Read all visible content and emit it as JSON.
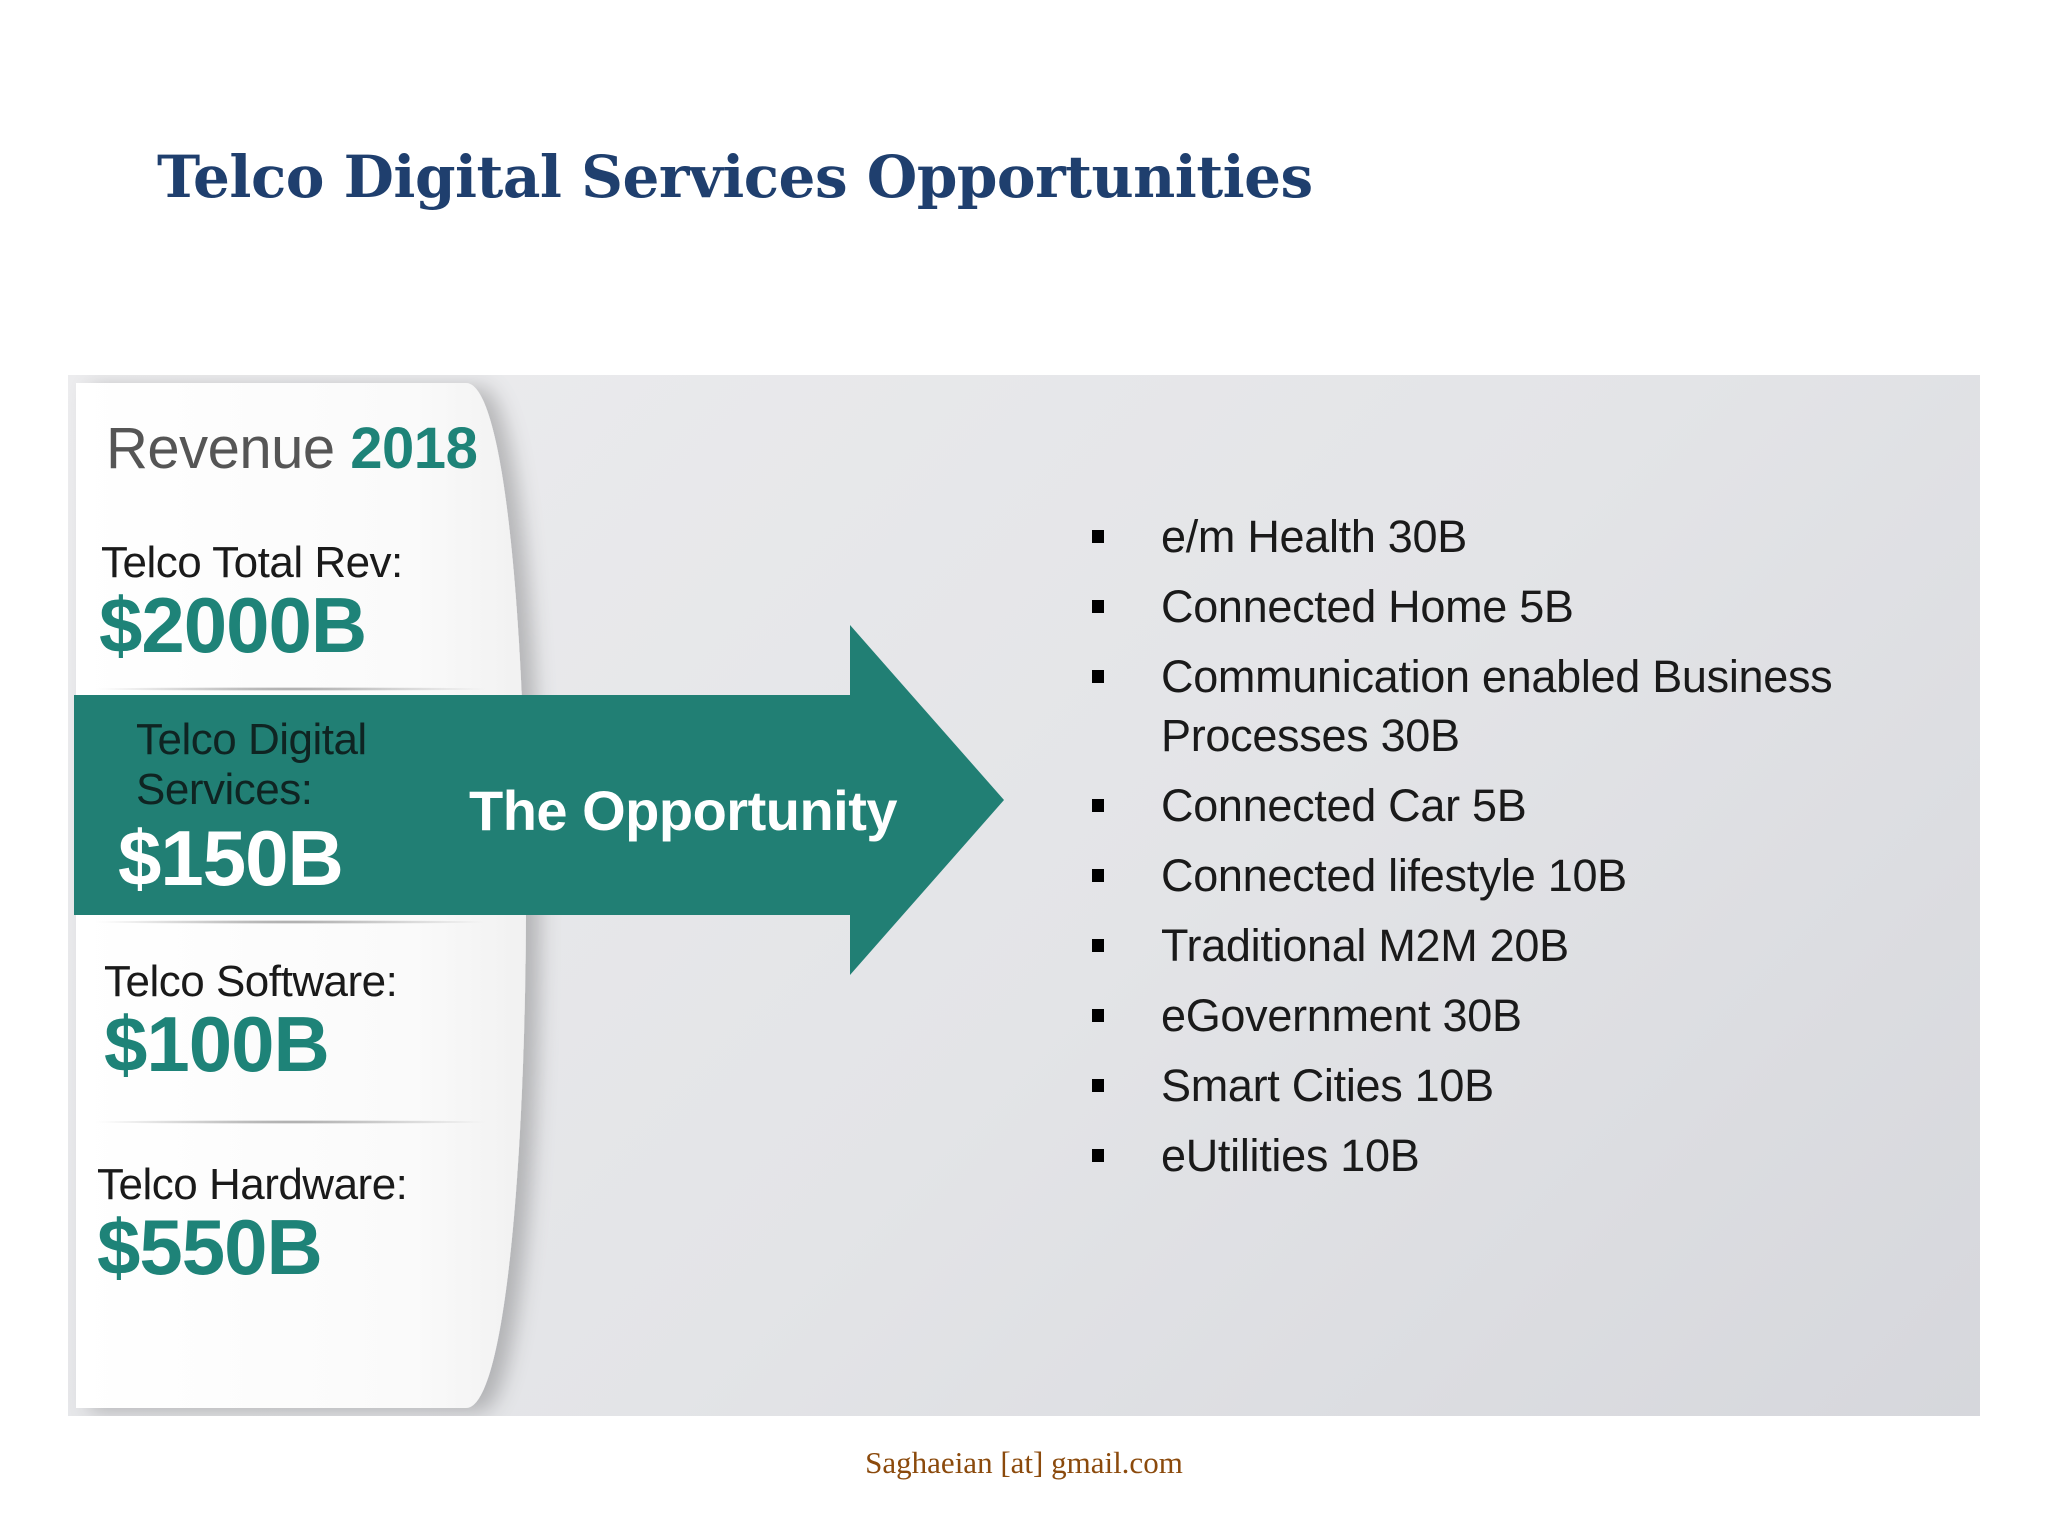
{
  "slide": {
    "title": "Telco Digital Services Opportunities"
  },
  "revenue_panel": {
    "heading_prefix": "Revenue",
    "heading_year": "2018",
    "total_label": "Telco Total Rev:",
    "total_value": "$2000B",
    "digital_label": "Telco Digital Services:",
    "digital_value": "$150B",
    "software_label": "Telco Software:",
    "software_value": "$100B",
    "hardware_label": "Telco Hardware:",
    "hardware_value": "$550B"
  },
  "arrow": {
    "label": "The Opportunity"
  },
  "opportunities": [
    "e/m Health 30B",
    "Connected Home 5B",
    "Communication enabled Business Processes 30B",
    "Connected Car 5B",
    "Connected lifestyle 10B",
    "Traditional M2M 20B",
    "eGovernment 30B",
    "Smart Cities 10B",
    "eUtilities 10B"
  ],
  "footer": {
    "contact": "Saghaeian [at] gmail.com"
  },
  "colors": {
    "title": "#1f3f6e",
    "accent_teal": "#1e8378",
    "footer": "#8b4a0c"
  }
}
